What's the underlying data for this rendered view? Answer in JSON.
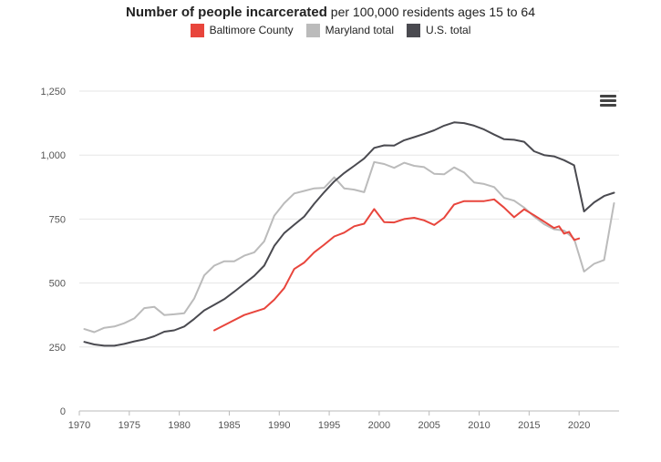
{
  "title": {
    "bold": "Number of people incarcerated",
    "rest": " per 100,000 residents ages 15 to 64"
  },
  "chart_data": {
    "type": "line",
    "title": "Number of people incarcerated per 100,000 residents ages 15 to 64",
    "xlabel": "",
    "ylabel": "",
    "xlim": [
      1970,
      2024
    ],
    "ylim": [
      0,
      1250
    ],
    "x_ticks": [
      1970,
      1975,
      1980,
      1985,
      1990,
      1995,
      2000,
      2005,
      2010,
      2015,
      2020
    ],
    "y_ticks": [
      0,
      250,
      500,
      750,
      1000,
      1250
    ],
    "y_tick_labels": [
      "0",
      "250",
      "500",
      "750",
      "1,000",
      "1,250"
    ],
    "grid": true,
    "legend_position": "top-center",
    "series": [
      {
        "name": "Baltimore County",
        "color": "#e8453c",
        "x": [
          1983.5,
          1985,
          1986.5,
          1988.5,
          1989.5,
          1990.5,
          1991.5,
          1992.5,
          1993.5,
          1994.5,
          1995.5,
          1996.5,
          1997.5,
          1998.5,
          1999.5,
          2000.5,
          2001.5,
          2002.5,
          2003.5,
          2004.5,
          2005.5,
          2006.5,
          2007.5,
          2008.5,
          2009.5,
          2010.5,
          2011.5,
          2012.5,
          2013.5,
          2014.5,
          2015.5,
          2016.5,
          2017.5,
          2018,
          2018.5,
          2019,
          2019.5,
          2020
        ],
        "y": [
          315,
          345,
          375,
          400,
          435,
          480,
          555,
          580,
          620,
          650,
          682,
          697,
          722,
          732,
          789,
          738,
          737,
          750,
          755,
          745,
          727,
          755,
          807,
          820,
          820,
          820,
          827,
          795,
          757,
          788,
          765,
          740,
          715,
          722,
          693,
          700,
          668,
          674
        ]
      },
      {
        "name": "Maryland total",
        "color": "#bbbbbb",
        "x": [
          1970.5,
          1971.5,
          1972.5,
          1973.5,
          1974.5,
          1975.5,
          1976.5,
          1977.5,
          1978.5,
          1979.5,
          1980.5,
          1981.5,
          1982.5,
          1983.5,
          1984.5,
          1985.5,
          1986.5,
          1987.5,
          1988.5,
          1989.5,
          1990.5,
          1991.5,
          1992.5,
          1993.5,
          1994.5,
          1995.5,
          1996.5,
          1997.5,
          1998.5,
          1999.5,
          2000.5,
          2001.5,
          2002.5,
          2003.5,
          2004.5,
          2005.5,
          2006.5,
          2007.5,
          2008.5,
          2009.5,
          2010.5,
          2011.5,
          2012.5,
          2013.5,
          2014.5,
          2015.5,
          2016.5,
          2017.5,
          2018.5,
          2019.5,
          2020.5,
          2021.5,
          2022.5,
          2023.5
        ],
        "y": [
          320,
          308,
          325,
          330,
          343,
          362,
          402,
          407,
          375,
          378,
          382,
          440,
          530,
          568,
          585,
          585,
          607,
          620,
          663,
          763,
          812,
          850,
          860,
          870,
          872,
          913,
          870,
          865,
          855,
          973,
          965,
          950,
          970,
          958,
          953,
          927,
          925,
          952,
          932,
          893,
          887,
          875,
          833,
          822,
          795,
          760,
          730,
          710,
          705,
          673,
          545,
          575,
          590,
          812
        ]
      },
      {
        "name": "U.S. total",
        "color": "#4a4a50",
        "x": [
          1970.5,
          1971.5,
          1972.5,
          1973.5,
          1974.5,
          1975.5,
          1976.5,
          1977.5,
          1978.5,
          1979.5,
          1980.5,
          1981.5,
          1982.5,
          1983.5,
          1984.5,
          1985.5,
          1986.5,
          1987.5,
          1988.5,
          1989.5,
          1990.5,
          1991.5,
          1992.5,
          1993.5,
          1994.5,
          1995.5,
          1996.5,
          1997.5,
          1998.5,
          1999.5,
          2000.5,
          2001.5,
          2002.5,
          2003.5,
          2004.5,
          2005.5,
          2006.5,
          2007.5,
          2008.5,
          2009.5,
          2010.5,
          2011.5,
          2012.5,
          2013.5,
          2014.5,
          2015.5,
          2016.5,
          2017.5,
          2018.5,
          2019.5,
          2020.5,
          2021.5,
          2022.5,
          2023.5
        ],
        "y": [
          270,
          260,
          255,
          255,
          262,
          272,
          280,
          292,
          310,
          315,
          330,
          360,
          393,
          415,
          437,
          466,
          497,
          528,
          568,
          645,
          695,
          728,
          760,
          810,
          855,
          897,
          930,
          958,
          987,
          1028,
          1038,
          1037,
          1058,
          1070,
          1083,
          1097,
          1115,
          1128,
          1125,
          1115,
          1100,
          1080,
          1062,
          1060,
          1052,
          1015,
          1000,
          995,
          980,
          960,
          780,
          815,
          840,
          853
        ]
      }
    ]
  }
}
